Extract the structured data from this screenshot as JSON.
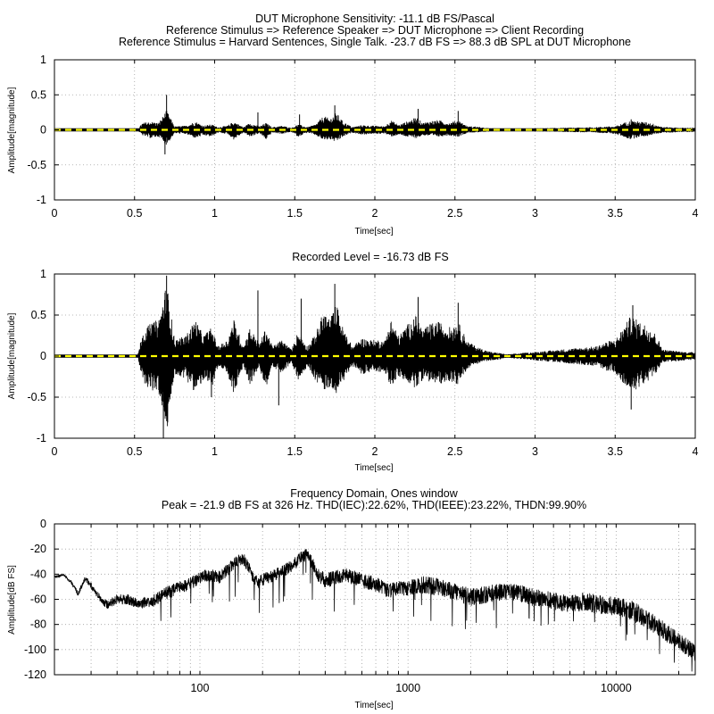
{
  "chart_data": [
    {
      "type": "line",
      "title_lines": [
        "DUT Microphone Sensitivity: -11.1 dB FS/Pascal",
        "Reference Stimulus => Reference Speaker => DUT Microphone => Client Recording",
        "Reference Stimulus = Harvard Sentences, Single Talk. -23.7 dB FS => 88.3 dB SPL at DUT Microphone"
      ],
      "xlabel": "Time[sec]",
      "ylabel": "Amplitude[magnitude]",
      "xlim": [
        0,
        4
      ],
      "ylim": [
        -1,
        1
      ],
      "xticks": [
        0,
        0.5,
        1,
        1.5,
        2,
        2.5,
        3,
        3.5,
        4
      ],
      "xtick_labels": [
        "0",
        "0.5",
        "1",
        "1.5",
        "2",
        "2.5",
        "3",
        "3.5",
        "4"
      ],
      "yticks": [
        -1,
        -0.5,
        0,
        0.5,
        1
      ],
      "ytick_labels": [
        "-1",
        "-0.5",
        "0",
        "0.5",
        "1"
      ],
      "grid": true,
      "series": [
        {
          "color": "#000000",
          "envelope_t": [
            0.0,
            0.52,
            0.55,
            0.6,
            0.65,
            0.7,
            0.75,
            0.82,
            0.88,
            0.93,
            0.98,
            1.02,
            1.08,
            1.12,
            1.18,
            1.22,
            1.28,
            1.32,
            1.36,
            1.42,
            1.48,
            1.52,
            1.58,
            1.63,
            1.68,
            1.72,
            1.76,
            1.8,
            1.86,
            1.92,
            1.97,
            2.02,
            2.06,
            2.1,
            2.15,
            2.2,
            2.26,
            2.3,
            2.35,
            2.4,
            2.46,
            2.52,
            2.58,
            2.63,
            2.68,
            2.73,
            2.78,
            2.82,
            3.38,
            3.45,
            3.5,
            3.55,
            3.6,
            3.65,
            3.7,
            3.75,
            3.8,
            3.85,
            3.9,
            3.95,
            4.0
          ],
          "envelope_upper": [
            0.01,
            0.01,
            0.1,
            0.12,
            0.1,
            0.28,
            0.05,
            0.06,
            0.12,
            0.06,
            0.08,
            0.04,
            0.06,
            0.12,
            0.04,
            0.1,
            0.05,
            0.1,
            0.04,
            0.06,
            0.03,
            0.08,
            0.04,
            0.08,
            0.2,
            0.16,
            0.25,
            0.12,
            0.04,
            0.07,
            0.06,
            0.06,
            0.05,
            0.14,
            0.07,
            0.12,
            0.18,
            0.1,
            0.13,
            0.14,
            0.1,
            0.14,
            0.05,
            0.05,
            0.03,
            0.02,
            0.02,
            0.01,
            0.04,
            0.05,
            0.05,
            0.1,
            0.13,
            0.12,
            0.11,
            0.08,
            0.04,
            0.04,
            0.03,
            0.03,
            0.03
          ],
          "envelope_lower": [
            -0.01,
            -0.01,
            -0.08,
            -0.12,
            -0.1,
            -0.22,
            -0.05,
            -0.06,
            -0.12,
            -0.08,
            -0.1,
            -0.04,
            -0.06,
            -0.14,
            -0.04,
            -0.1,
            -0.05,
            -0.14,
            -0.04,
            -0.06,
            -0.03,
            -0.1,
            -0.04,
            -0.08,
            -0.15,
            -0.14,
            -0.18,
            -0.1,
            -0.04,
            -0.07,
            -0.06,
            -0.06,
            -0.05,
            -0.1,
            -0.07,
            -0.1,
            -0.12,
            -0.08,
            -0.09,
            -0.1,
            -0.08,
            -0.1,
            -0.04,
            -0.04,
            -0.03,
            -0.02,
            -0.02,
            -0.01,
            -0.04,
            -0.05,
            -0.06,
            -0.1,
            -0.14,
            -0.1,
            -0.09,
            -0.06,
            -0.04,
            -0.04,
            -0.03,
            -0.03,
            -0.03
          ],
          "peaks": [
            {
              "t": 0.7,
              "y": 0.5
            },
            {
              "t": 0.69,
              "y": -0.35
            },
            {
              "t": 1.27,
              "y": 0.25
            },
            {
              "t": 1.53,
              "y": 0.22
            },
            {
              "t": 1.75,
              "y": 0.35
            },
            {
              "t": 2.27,
              "y": 0.3
            },
            {
              "t": 2.52,
              "y": 0.27
            },
            {
              "t": 3.6,
              "y": 0.15
            }
          ]
        },
        {
          "color": "#ffff00",
          "style": "dashed",
          "y": 0
        }
      ]
    },
    {
      "type": "line",
      "title_lines": [
        "Recorded Level = -16.73 dB FS"
      ],
      "xlabel": "Time[sec]",
      "ylabel": "Amplitude[magnitude]",
      "xlim": [
        0,
        4
      ],
      "ylim": [
        -1,
        1
      ],
      "xticks": [
        0,
        0.5,
        1,
        1.5,
        2,
        2.5,
        3,
        3.5,
        4
      ],
      "xtick_labels": [
        "0",
        "0.5",
        "1",
        "1.5",
        "2",
        "2.5",
        "3",
        "3.5",
        "4"
      ],
      "yticks": [
        -1,
        -0.5,
        0,
        0.5,
        1
      ],
      "ytick_labels": [
        "-1",
        "-0.5",
        "0",
        "0.5",
        "1"
      ],
      "grid": true,
      "series": [
        {
          "color": "#000000",
          "envelope_t": [
            0.0,
            0.52,
            0.55,
            0.6,
            0.65,
            0.7,
            0.75,
            0.82,
            0.88,
            0.93,
            0.98,
            1.02,
            1.08,
            1.12,
            1.18,
            1.22,
            1.28,
            1.32,
            1.36,
            1.42,
            1.48,
            1.52,
            1.58,
            1.63,
            1.68,
            1.72,
            1.76,
            1.8,
            1.86,
            1.92,
            1.97,
            2.02,
            2.06,
            2.1,
            2.15,
            2.2,
            2.26,
            2.3,
            2.35,
            2.4,
            2.46,
            2.52,
            2.58,
            2.63,
            2.68,
            2.73,
            2.78,
            2.82,
            3.38,
            3.45,
            3.5,
            3.55,
            3.6,
            3.65,
            3.7,
            3.75,
            3.8,
            3.85,
            3.9,
            3.95,
            4.0
          ],
          "envelope_upper": [
            0.01,
            0.01,
            0.3,
            0.4,
            0.45,
            0.9,
            0.2,
            0.25,
            0.45,
            0.25,
            0.35,
            0.12,
            0.2,
            0.45,
            0.12,
            0.35,
            0.15,
            0.35,
            0.12,
            0.2,
            0.08,
            0.3,
            0.12,
            0.28,
            0.55,
            0.45,
            0.65,
            0.35,
            0.12,
            0.22,
            0.2,
            0.2,
            0.18,
            0.45,
            0.25,
            0.38,
            0.5,
            0.32,
            0.4,
            0.42,
            0.35,
            0.42,
            0.18,
            0.12,
            0.08,
            0.05,
            0.04,
            0.02,
            0.12,
            0.18,
            0.2,
            0.35,
            0.5,
            0.42,
            0.38,
            0.28,
            0.08,
            0.07,
            0.06,
            0.05,
            0.05
          ],
          "envelope_lower": [
            -0.01,
            -0.01,
            -0.3,
            -0.42,
            -0.45,
            -0.95,
            -0.22,
            -0.28,
            -0.45,
            -0.3,
            -0.4,
            -0.14,
            -0.22,
            -0.48,
            -0.12,
            -0.35,
            -0.15,
            -0.4,
            -0.12,
            -0.22,
            -0.08,
            -0.3,
            -0.12,
            -0.3,
            -0.42,
            -0.38,
            -0.45,
            -0.32,
            -0.12,
            -0.22,
            -0.2,
            -0.2,
            -0.18,
            -0.38,
            -0.25,
            -0.32,
            -0.4,
            -0.28,
            -0.32,
            -0.35,
            -0.3,
            -0.35,
            -0.15,
            -0.1,
            -0.07,
            -0.05,
            -0.04,
            -0.02,
            -0.12,
            -0.18,
            -0.2,
            -0.35,
            -0.45,
            -0.38,
            -0.32,
            -0.22,
            -0.08,
            -0.07,
            -0.06,
            -0.05,
            -0.05
          ],
          "peaks": [
            {
              "t": 0.7,
              "y": 0.98
            },
            {
              "t": 0.68,
              "y": -1.0
            },
            {
              "t": 1.27,
              "y": 0.8
            },
            {
              "t": 1.54,
              "y": 0.7
            },
            {
              "t": 1.75,
              "y": 0.88
            },
            {
              "t": 2.27,
              "y": 0.72
            },
            {
              "t": 2.52,
              "y": 0.65
            },
            {
              "t": 3.61,
              "y": 0.62
            },
            {
              "t": 0.98,
              "y": -0.5
            },
            {
              "t": 1.4,
              "y": -0.6
            },
            {
              "t": 3.6,
              "y": -0.65
            }
          ]
        },
        {
          "color": "#ffff00",
          "style": "dashed",
          "y": 0
        }
      ]
    },
    {
      "type": "line",
      "title_lines": [
        "Frequency Domain, Ones window",
        "Peak = -21.9 dB FS at 326 Hz. THD(IEC):22.62%, THD(IEEE):23.22%, THDN:99.90%"
      ],
      "xlabel": "Time[sec]",
      "ylabel": "Amplitude[dB FS]",
      "xscale": "log",
      "xlim": [
        20,
        24000
      ],
      "ylim": [
        -120,
        0
      ],
      "xticks": [
        100,
        1000,
        10000
      ],
      "xtick_labels": [
        "100",
        "1000",
        "10000"
      ],
      "yticks": [
        -120,
        -100,
        -80,
        -60,
        -40,
        -20,
        0
      ],
      "ytick_labels": [
        "-120",
        "-100",
        "-80",
        "-60",
        "-40",
        "-20",
        "0"
      ],
      "grid": true,
      "series": [
        {
          "color": "#000000",
          "freq": [
            20,
            22,
            24,
            26,
            28,
            30,
            32,
            34,
            36,
            40,
            45,
            50,
            55,
            60,
            65,
            70,
            80,
            90,
            100,
            110,
            125,
            140,
            150,
            160,
            170,
            180,
            190,
            200,
            215,
            230,
            250,
            270,
            290,
            310,
            326,
            345,
            370,
            400,
            450,
            500,
            600,
            700,
            800,
            1000,
            1200,
            1500,
            2000,
            2500,
            3000,
            4000,
            5000,
            6000,
            7000,
            8000,
            10000,
            12000,
            14000,
            16000,
            18000,
            20000,
            22000,
            24000
          ],
          "level_db": [
            -42,
            -40,
            -45,
            -55,
            -42,
            -48,
            -55,
            -60,
            -62,
            -58,
            -58,
            -62,
            -60,
            -58,
            -55,
            -52,
            -48,
            -45,
            -40,
            -38,
            -40,
            -32,
            -28,
            -25,
            -30,
            -40,
            -45,
            -42,
            -40,
            -38,
            -35,
            -32,
            -28,
            -24,
            -22,
            -28,
            -38,
            -42,
            -40,
            -38,
            -42,
            -45,
            -50,
            -48,
            -45,
            -48,
            -55,
            -52,
            -50,
            -55,
            -58,
            -60,
            -58,
            -60,
            -62,
            -65,
            -72,
            -78,
            -85,
            -90,
            -95,
            -100
          ],
          "spread_db": [
            2,
            2,
            3,
            4,
            4,
            5,
            5,
            6,
            8,
            8,
            8,
            8,
            9,
            10,
            10,
            10,
            10,
            10,
            10,
            10,
            10,
            10,
            10,
            10,
            10,
            10,
            10,
            10,
            10,
            10,
            10,
            10,
            10,
            10,
            10,
            10,
            12,
            12,
            12,
            12,
            12,
            12,
            12,
            12,
            14,
            14,
            14,
            14,
            14,
            14,
            14,
            14,
            15,
            15,
            15,
            15,
            15,
            15,
            14,
            14,
            14,
            14
          ]
        }
      ]
    }
  ]
}
